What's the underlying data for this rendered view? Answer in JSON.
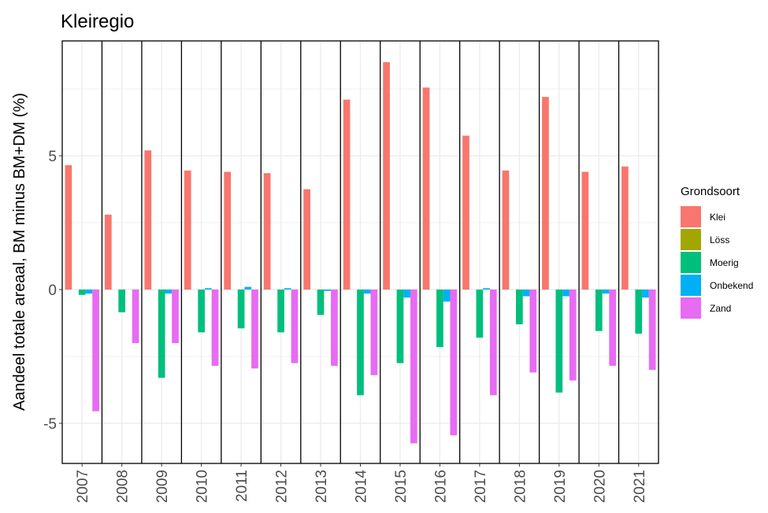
{
  "chart_data": {
    "type": "bar",
    "title": "Kleiregio",
    "xlabel": "",
    "ylabel": "Aandeel totale areaal, BM minus BM+DM (%)",
    "ylim": [
      -6.3,
      9.3
    ],
    "yticks": [
      -5,
      0,
      5
    ],
    "grid": true,
    "legend_title": "Grondsoort",
    "legend_position": "right",
    "categories": [
      "2007",
      "2008",
      "2009",
      "2010",
      "2011",
      "2012",
      "2013",
      "2014",
      "2015",
      "2016",
      "2017",
      "2018",
      "2019",
      "2020",
      "2021"
    ],
    "series": [
      {
        "name": "Klei",
        "color": "#F8766D",
        "values": [
          4.65,
          2.8,
          5.2,
          4.45,
          4.4,
          4.35,
          3.75,
          7.1,
          8.5,
          7.55,
          5.75,
          4.45,
          7.2,
          4.4,
          4.6
        ]
      },
      {
        "name": "Löss",
        "color": "#A3A500",
        "values": [
          0,
          0,
          0,
          0,
          0,
          0,
          0,
          0,
          0,
          0,
          0,
          0,
          0,
          0,
          0
        ]
      },
      {
        "name": "Moerig",
        "color": "#00BF7D",
        "values": [
          -0.2,
          -0.85,
          -3.3,
          -1.6,
          -1.45,
          -1.6,
          -0.95,
          -3.95,
          -2.75,
          -2.15,
          -1.8,
          -1.3,
          -3.85,
          -1.55,
          -1.65
        ]
      },
      {
        "name": "Onbekend",
        "color": "#00B0F6",
        "values": [
          -0.15,
          0,
          -0.15,
          0.05,
          0.1,
          0.05,
          -0.05,
          -0.15,
          -0.3,
          -0.45,
          0.05,
          -0.25,
          -0.25,
          -0.15,
          -0.3
        ]
      },
      {
        "name": "Zand",
        "color": "#E76BF3",
        "values": [
          -4.55,
          -2.0,
          -2.0,
          -2.85,
          -2.95,
          -2.75,
          -2.85,
          -3.2,
          -5.75,
          -5.45,
          -3.95,
          -3.1,
          -3.4,
          -2.85,
          -3.0
        ]
      }
    ]
  }
}
